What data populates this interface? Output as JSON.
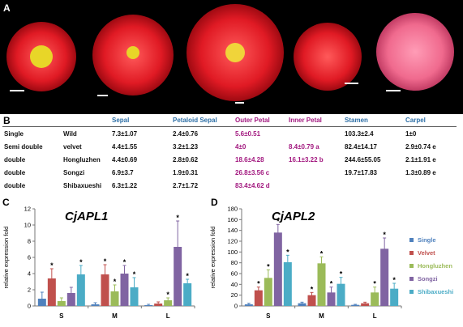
{
  "panels": {
    "a": "A",
    "b": "B",
    "c": "C",
    "d": "D"
  },
  "table": {
    "headers": [
      "Sepal",
      "Petaloid Sepal",
      "Outer Petal",
      "Inner Petal",
      "Stamen",
      "Carpel"
    ],
    "rows": [
      {
        "type": "Single",
        "name": "Wild",
        "sepal": "7.3±1.07",
        "petaloid": "2.4±0.76",
        "outer": "5.6±0.51",
        "inner": "",
        "stamen": "103.3±2.4",
        "carpel": "1±0"
      },
      {
        "type": "Semi double",
        "name": "velvet",
        "sepal": "4.4±1.55",
        "petaloid": "3.2±1.23",
        "outer": "4±0",
        "inner": "8.4±0.79 a",
        "stamen": "82.4±14.17",
        "carpel": "2.9±0.74 e"
      },
      {
        "type": "double",
        "name": "Hongluzhen",
        "sepal": "4.4±0.69",
        "petaloid": "2.8±0.62",
        "outer": "18.6±4.28",
        "inner": "16.1±3.22 b",
        "stamen": "244.6±55.05",
        "carpel": "2.1±1.91 e"
      },
      {
        "type": "double",
        "name": "Songzi",
        "sepal": "6.9±3.7",
        "petaloid": "1.9±0.31",
        "outer": "26.8±3.56 c",
        "inner": "",
        "stamen": "19.7±17.83",
        "carpel": "1.3±0.89 e"
      },
      {
        "type": "double",
        "name": "Shibaxueshi",
        "sepal": "6.3±1.22",
        "petaloid": "2.7±1.72",
        "outer": "83.4±4.62 d",
        "inner": "",
        "stamen": "",
        "carpel": ""
      }
    ]
  },
  "chart_data": [
    {
      "type": "bar",
      "title": "CjAPL1",
      "ylabel": "relative expression fold",
      "categories": [
        "S",
        "M",
        "L"
      ],
      "ylim": [
        0,
        12
      ],
      "yticks": [
        0,
        2,
        4,
        6,
        8,
        10,
        12
      ],
      "series": [
        {
          "name": "Single",
          "values": [
            0.9,
            0.2,
            0.1
          ],
          "errors": [
            0.8,
            0.2,
            0.1
          ],
          "sig": [
            false,
            false,
            false
          ]
        },
        {
          "name": "Velvet",
          "values": [
            3.4,
            3.9,
            0.3
          ],
          "errors": [
            1.2,
            1.2,
            0.2
          ],
          "sig": [
            true,
            true,
            false
          ]
        },
        {
          "name": "Hongluzhen",
          "values": [
            0.6,
            1.8,
            0.7
          ],
          "errors": [
            0.4,
            0.8,
            0.3
          ],
          "sig": [
            false,
            true,
            true
          ]
        },
        {
          "name": "Songzi",
          "values": [
            1.6,
            4.0,
            7.3
          ],
          "errors": [
            0.7,
            1.0,
            3.2
          ],
          "sig": [
            false,
            true,
            true
          ]
        },
        {
          "name": "Shibaxueshi",
          "values": [
            3.9,
            2.3,
            2.8
          ],
          "errors": [
            1.1,
            1.2,
            0.5
          ],
          "sig": [
            true,
            true,
            true
          ]
        }
      ]
    },
    {
      "type": "bar",
      "title": "CjAPL2",
      "ylabel": "relative expression fold",
      "categories": [
        "S",
        "M",
        "L"
      ],
      "ylim": [
        0,
        180
      ],
      "yticks": [
        0,
        20,
        40,
        60,
        80,
        100,
        120,
        140,
        160,
        180
      ],
      "series": [
        {
          "name": "Single",
          "values": [
            3,
            5,
            2
          ],
          "errors": [
            2,
            2,
            1
          ],
          "sig": [
            false,
            false,
            false
          ]
        },
        {
          "name": "Velvet",
          "values": [
            29,
            20,
            5
          ],
          "errors": [
            6,
            5,
            2
          ],
          "sig": [
            true,
            true,
            false
          ]
        },
        {
          "name": "Hongluzhen",
          "values": [
            52,
            79,
            25
          ],
          "errors": [
            15,
            12,
            10
          ],
          "sig": [
            true,
            true,
            true
          ]
        },
        {
          "name": "Songzi",
          "values": [
            136,
            25,
            106
          ],
          "errors": [
            15,
            10,
            20
          ],
          "sig": [
            true,
            true,
            true
          ]
        },
        {
          "name": "Shibaxueshi",
          "values": [
            81,
            41,
            32
          ],
          "errors": [
            13,
            12,
            10
          ],
          "sig": [
            true,
            true,
            true
          ]
        }
      ]
    }
  ],
  "legend": [
    "Single",
    "Velvet",
    "Hongluzhen",
    "Songzi",
    "Shibaxueshi"
  ],
  "colors": {
    "Single": "#4f81bd",
    "Velvet": "#c0504d",
    "Hongluzhen": "#9bbb59",
    "Songzi": "#8064a2",
    "Shibaxueshi": "#4bacc6",
    "header_blue": "#2d6fa6",
    "petal_pink": "#a2187f"
  }
}
